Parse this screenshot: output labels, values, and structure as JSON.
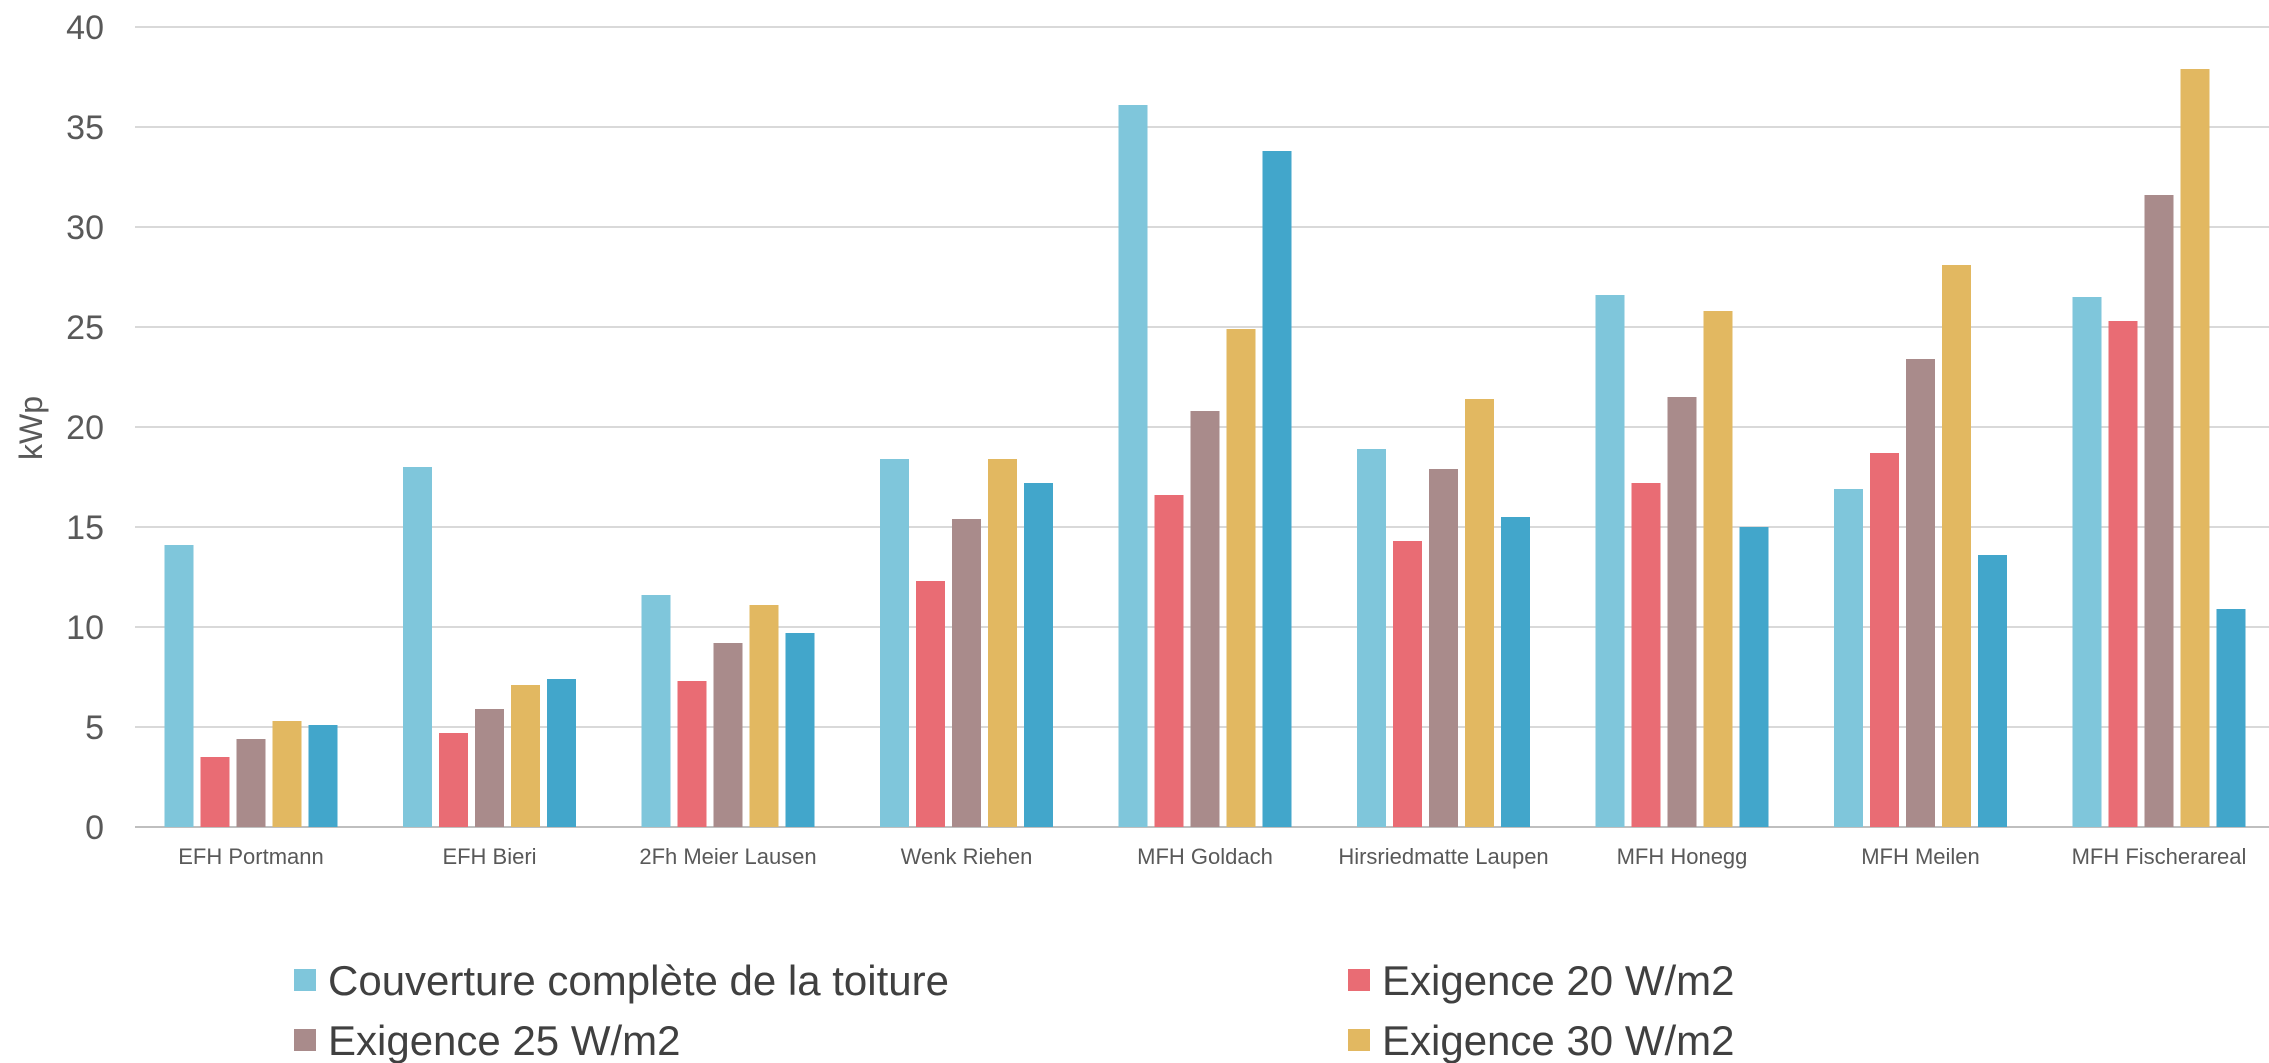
{
  "chart_data": {
    "type": "bar",
    "title": "",
    "xlabel": "",
    "ylabel": "kWp",
    "ylim": [
      0,
      40
    ],
    "yticks": [
      0,
      5,
      10,
      15,
      20,
      25,
      30,
      35,
      40
    ],
    "grid": true,
    "legend_position": "bottom",
    "categories": [
      "EFH Portmann",
      "EFH Bieri",
      "2Fh Meier Lausen",
      "Wenk Riehen",
      "MFH Goldach",
      "Hirsriedmatte Laupen",
      "MFH Honegg",
      "MFH Meilen",
      "MFH Fischerareal"
    ],
    "series": [
      {
        "name": "Couverture complète de la toiture",
        "color": "#7FC6DB",
        "values": [
          14.1,
          18.0,
          11.6,
          18.4,
          36.1,
          18.9,
          26.6,
          16.9,
          26.5
        ]
      },
      {
        "name": "Exigence 20 W/m2",
        "color": "#E96C74",
        "values": [
          3.5,
          4.7,
          7.3,
          12.3,
          16.6,
          14.3,
          17.2,
          18.7,
          25.3
        ]
      },
      {
        "name": "Exigence 25 W/m2",
        "color": "#A98B8B",
        "values": [
          4.4,
          5.9,
          9.2,
          15.4,
          20.8,
          17.9,
          21.5,
          23.4,
          31.6
        ]
      },
      {
        "name": "Exigence 30 W/m2",
        "color": "#E2B861",
        "values": [
          5.3,
          7.1,
          11.1,
          18.4,
          24.9,
          21.4,
          25.8,
          28.1,
          37.9
        ]
      },
      {
        "color": "#42A6CB",
        "values": [
          5.1,
          7.4,
          9.7,
          17.2,
          33.8,
          15.5,
          15.0,
          13.6,
          10.9
        ]
      }
    ]
  }
}
